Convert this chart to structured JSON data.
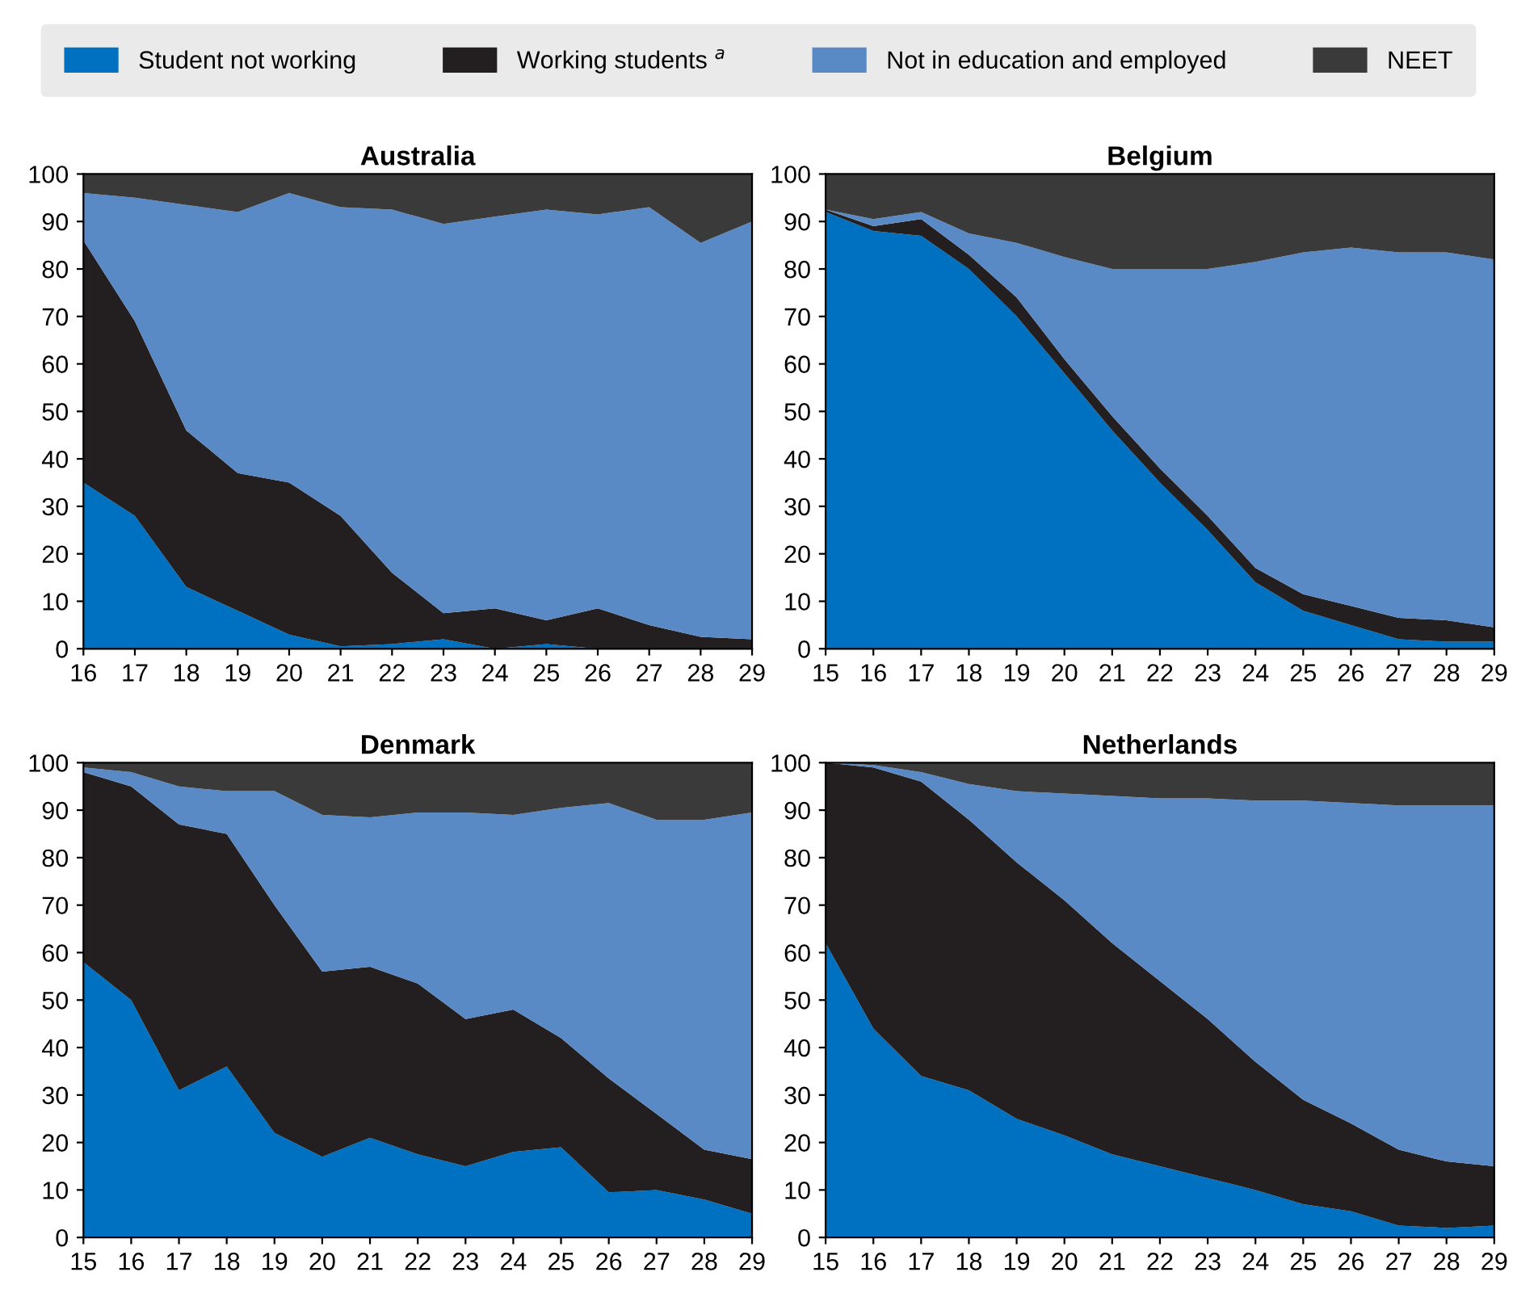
{
  "chart_data": [
    {
      "type": "area",
      "stacked": true,
      "title": "Australia",
      "legend": "top",
      "x": [
        16,
        17,
        18,
        19,
        20,
        21,
        22,
        23,
        24,
        25,
        26,
        27,
        28,
        29
      ],
      "xlim": [
        16,
        29
      ],
      "xticks": [
        16,
        17,
        18,
        19,
        20,
        21,
        22,
        23,
        24,
        25,
        26,
        27,
        28,
        29
      ],
      "ylim": [
        0,
        100
      ],
      "yticks": [
        0,
        10,
        20,
        30,
        40,
        50,
        60,
        70,
        80,
        90,
        100
      ],
      "series": [
        {
          "name": "Student not working",
          "color": "#0070c0",
          "values": [
            35,
            28,
            13,
            8,
            3,
            0.5,
            1,
            2,
            0,
            1,
            0,
            0,
            0,
            0
          ]
        },
        {
          "name": "Working students $^{a}$",
          "color": "#231f20",
          "values": [
            51,
            41,
            33,
            29,
            32,
            27.5,
            15,
            5.5,
            8.5,
            5,
            8.5,
            5,
            2.5,
            2
          ]
        },
        {
          "name": "Not in education and employed",
          "color": "#5a8ac6",
          "values": [
            10,
            26,
            47.5,
            55,
            61,
            65,
            76.5,
            82,
            82.5,
            86.5,
            83,
            88,
            83,
            88
          ]
        },
        {
          "name": "NEET",
          "color": "#3a3a3a",
          "values": [
            4,
            5,
            6.5,
            8,
            4,
            7,
            7.5,
            10.5,
            9,
            7.5,
            8.5,
            7,
            14.5,
            10
          ]
        }
      ]
    },
    {
      "type": "area",
      "stacked": true,
      "title": "Belgium",
      "x": [
        15,
        16,
        17,
        18,
        19,
        20,
        21,
        22,
        23,
        24,
        25,
        26,
        27,
        28,
        29
      ],
      "xlim": [
        15,
        29
      ],
      "xticks": [
        15,
        16,
        17,
        18,
        19,
        20,
        21,
        22,
        23,
        24,
        25,
        26,
        27,
        28,
        29
      ],
      "ylim": [
        0,
        100
      ],
      "yticks": [
        0,
        10,
        20,
        30,
        40,
        50,
        60,
        70,
        80,
        90,
        100
      ],
      "series": [
        {
          "color": "#0070c0",
          "values": [
            92,
            88,
            87,
            80,
            70,
            58,
            46,
            35,
            25,
            14,
            8,
            5,
            2,
            1.5,
            1.5
          ]
        },
        {
          "color": "#231f20",
          "values": [
            0.5,
            1,
            3.5,
            3,
            4,
            3,
            3,
            3,
            3,
            3,
            3.5,
            4,
            4.5,
            4.5,
            3
          ]
        },
        {
          "color": "#5a8ac6",
          "values": [
            0,
            1.5,
            1.5,
            4.5,
            11.5,
            21.5,
            31,
            42,
            52,
            64.5,
            72,
            75.5,
            77,
            77.5,
            77.5
          ]
        },
        {
          "color": "#3a3a3a",
          "values": [
            7.5,
            9.5,
            8,
            12.5,
            14.5,
            17.5,
            20,
            20,
            20,
            18.5,
            16.5,
            15.5,
            16.5,
            16.5,
            18
          ]
        }
      ]
    },
    {
      "type": "area",
      "stacked": true,
      "title": "Denmark",
      "x": [
        15,
        16,
        17,
        18,
        19,
        20,
        21,
        22,
        23,
        24,
        25,
        26,
        27,
        28,
        29
      ],
      "xlim": [
        15,
        29
      ],
      "xticks": [
        15,
        16,
        17,
        18,
        19,
        20,
        21,
        22,
        23,
        24,
        25,
        26,
        27,
        28,
        29
      ],
      "ylim": [
        0,
        100
      ],
      "yticks": [
        0,
        10,
        20,
        30,
        40,
        50,
        60,
        70,
        80,
        90,
        100
      ],
      "series": [
        {
          "color": "#0070c0",
          "values": [
            58,
            50,
            31,
            36,
            22,
            17,
            21,
            17.5,
            15,
            18,
            19,
            9.5,
            10,
            8,
            5
          ]
        },
        {
          "color": "#231f20",
          "values": [
            40,
            45,
            56,
            49,
            48,
            39,
            36,
            36,
            31,
            30,
            23,
            24,
            16,
            10.5,
            11.5
          ]
        },
        {
          "color": "#5a8ac6",
          "values": [
            1,
            3,
            8,
            9,
            24,
            33,
            31.5,
            36,
            43.5,
            41,
            48.5,
            58,
            62,
            69.5,
            73
          ]
        },
        {
          "color": "#3a3a3a",
          "values": [
            1,
            2,
            5,
            6,
            6,
            11,
            11.5,
            10.5,
            10.5,
            11,
            9.5,
            8.5,
            12,
            12,
            10.5
          ]
        }
      ]
    },
    {
      "type": "area",
      "stacked": true,
      "title": "Netherlands",
      "x": [
        15,
        16,
        17,
        18,
        19,
        20,
        21,
        22,
        23,
        24,
        25,
        26,
        27,
        28,
        29
      ],
      "xlim": [
        15,
        29
      ],
      "xticks": [
        15,
        16,
        17,
        18,
        19,
        20,
        21,
        22,
        23,
        24,
        25,
        26,
        27,
        28,
        29
      ],
      "ylim": [
        0,
        100
      ],
      "yticks": [
        0,
        10,
        20,
        30,
        40,
        50,
        60,
        70,
        80,
        90,
        100
      ],
      "series": [
        {
          "color": "#0070c0",
          "values": [
            62,
            44,
            34,
            31,
            25,
            21.5,
            17.5,
            15,
            12.5,
            10,
            7,
            5.5,
            2.5,
            2,
            2.5
          ]
        },
        {
          "color": "#231f20",
          "values": [
            38,
            55,
            62,
            57,
            54,
            49.5,
            44.5,
            39,
            33.5,
            27,
            22,
            18.5,
            16,
            14,
            12.5
          ]
        },
        {
          "color": "#5a8ac6",
          "values": [
            0,
            0.5,
            2,
            7.5,
            15,
            22.5,
            31,
            38.5,
            46.5,
            55,
            63,
            67.5,
            72.5,
            75,
            76
          ]
        },
        {
          "color": "#3a3a3a",
          "values": [
            0,
            0.5,
            2,
            4.5,
            6,
            6.5,
            7,
            7.5,
            7.5,
            8,
            8,
            8.5,
            9,
            9,
            9
          ]
        }
      ]
    }
  ]
}
